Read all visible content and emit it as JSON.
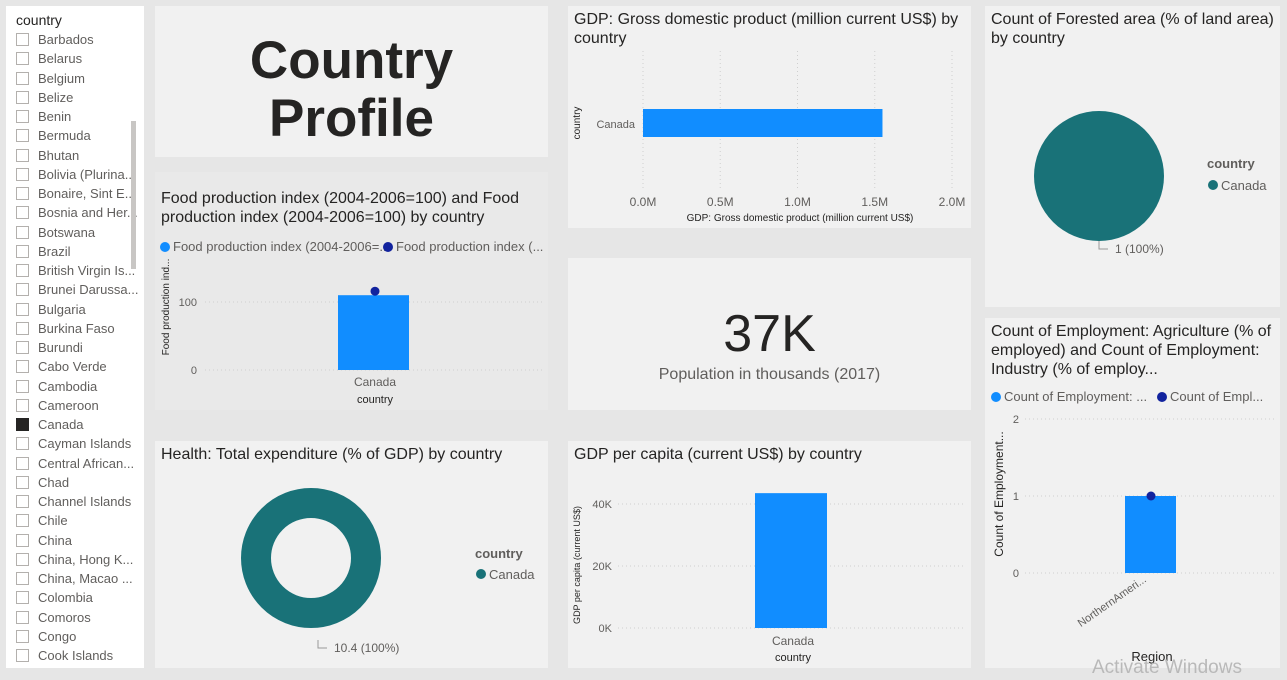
{
  "slicer": {
    "header": "country",
    "items": [
      {
        "label": "Barbados",
        "checked": false
      },
      {
        "label": "Belarus",
        "checked": false
      },
      {
        "label": "Belgium",
        "checked": false
      },
      {
        "label": "Belize",
        "checked": false
      },
      {
        "label": "Benin",
        "checked": false
      },
      {
        "label": "Bermuda",
        "checked": false
      },
      {
        "label": "Bhutan",
        "checked": false
      },
      {
        "label": "Bolivia (Plurina...",
        "checked": false
      },
      {
        "label": "Bonaire, Sint E...",
        "checked": false
      },
      {
        "label": "Bosnia and Her...",
        "checked": false
      },
      {
        "label": "Botswana",
        "checked": false
      },
      {
        "label": "Brazil",
        "checked": false
      },
      {
        "label": "British Virgin Is...",
        "checked": false
      },
      {
        "label": "Brunei Darussa...",
        "checked": false
      },
      {
        "label": "Bulgaria",
        "checked": false
      },
      {
        "label": "Burkina Faso",
        "checked": false
      },
      {
        "label": "Burundi",
        "checked": false
      },
      {
        "label": "Cabo Verde",
        "checked": false
      },
      {
        "label": "Cambodia",
        "checked": false
      },
      {
        "label": "Cameroon",
        "checked": false
      },
      {
        "label": "Canada",
        "checked": true
      },
      {
        "label": "Cayman Islands",
        "checked": false
      },
      {
        "label": "Central African...",
        "checked": false
      },
      {
        "label": "Chad",
        "checked": false
      },
      {
        "label": "Channel Islands",
        "checked": false
      },
      {
        "label": "Chile",
        "checked": false
      },
      {
        "label": "China",
        "checked": false
      },
      {
        "label": "China, Hong K...",
        "checked": false
      },
      {
        "label": "China, Macao ...",
        "checked": false
      },
      {
        "label": "Colombia",
        "checked": false
      },
      {
        "label": "Comoros",
        "checked": false
      },
      {
        "label": "Congo",
        "checked": false
      },
      {
        "label": "Cook Islands",
        "checked": false
      }
    ]
  },
  "page_title": "Country Profile",
  "colors": {
    "bar": "#118dff",
    "dot": "#12239e",
    "teal": "#197278",
    "gridline": "#dddddd"
  },
  "food": {
    "title": "Food production index (2004-2006=100) and Food production index (2004-2006=100) by country",
    "legend": [
      "Food production index (2004-2006=...",
      "Food production index (..."
    ],
    "ylabel": "Food production ind...",
    "xlabel": "country",
    "yticks": [
      "100",
      "0"
    ],
    "category": "Canada",
    "chart_data": {
      "type": "bar",
      "categories": [
        "Canada"
      ],
      "series": [
        {
          "values": [
            110
          ]
        },
        {
          "values": [
            110
          ]
        }
      ],
      "ylim": [
        0,
        130
      ]
    }
  },
  "gdp": {
    "title": "GDP: Gross domestic product (million current US$) by country",
    "ylabel": "country",
    "xlabel": "GDP: Gross domestic product (million current US$)",
    "category": "Canada",
    "xticks": [
      "0.0M",
      "0.5M",
      "1.0M",
      "1.5M",
      "2.0M"
    ],
    "chart_data": {
      "type": "bar",
      "orientation": "horizontal",
      "categories": [
        "Canada"
      ],
      "values": [
        1550000
      ],
      "xlim": [
        0,
        2000000
      ]
    }
  },
  "population": {
    "value": "37K",
    "caption": "Population in thousands (2017)"
  },
  "forest": {
    "title": "Count of Forested area (% of land area) by country",
    "legend_title": "country",
    "legend": [
      "Canada"
    ],
    "slice_label": "1 (100%)",
    "chart_data": {
      "type": "pie",
      "labels": [
        "Canada"
      ],
      "values": [
        1
      ]
    }
  },
  "health": {
    "title": "Health: Total expenditure (% of GDP) by country",
    "legend_title": "country",
    "legend": [
      "Canada"
    ],
    "slice_label": "10.4 (100%)",
    "chart_data": {
      "type": "pie",
      "donut": true,
      "labels": [
        "Canada"
      ],
      "values": [
        10.4
      ]
    }
  },
  "gdppc": {
    "title": "GDP per capita (current US$) by country",
    "ylabel": "GDP per capita (current US$)",
    "xlabel": "country",
    "category": "Canada",
    "yticks": [
      "40K",
      "20K",
      "0K"
    ],
    "chart_data": {
      "type": "bar",
      "categories": [
        "Canada"
      ],
      "values": [
        43500
      ],
      "ylim": [
        0,
        47000
      ]
    }
  },
  "emp": {
    "title": "Count of Employment: Agriculture (% of employed) and Count of Employment: Industry (% of employ...",
    "legend": [
      "Count of Employment: ...",
      "Count of Empl..."
    ],
    "ylabel": "Count of Employment...",
    "xlabel": "Region",
    "category": "NorthernAmeri...",
    "yticks": [
      "2",
      "1",
      "0"
    ],
    "chart_data": {
      "type": "bar",
      "categories": [
        "NorthernAmerica"
      ],
      "series": [
        {
          "values": [
            1
          ]
        },
        {
          "values": [
            1
          ]
        }
      ],
      "ylim": [
        0,
        2
      ]
    }
  },
  "watermark": "Activate Windows"
}
